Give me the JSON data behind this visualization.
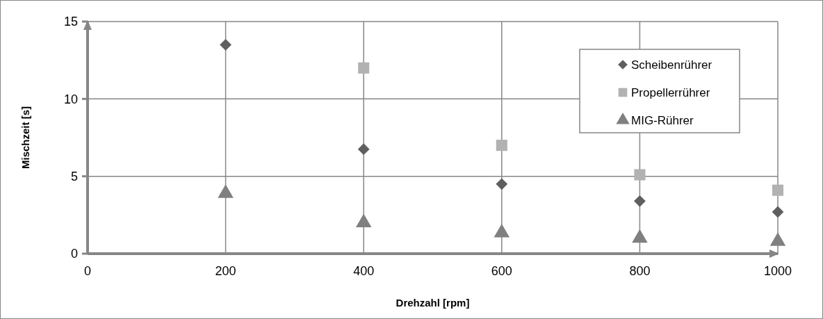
{
  "chart_data": {
    "type": "scatter",
    "xlabel": "Drehzahl [rpm]",
    "ylabel": "Mischzeit [s]",
    "x": [
      200,
      400,
      600,
      800,
      1000
    ],
    "series": [
      {
        "name": "Scheibenrührer",
        "color": "#5f5f5f",
        "marker": "diamond",
        "values": [
          13.5,
          6.75,
          4.5,
          3.4,
          2.7
        ]
      },
      {
        "name": "Propellerrührer",
        "color": "#b2b2b2",
        "marker": "square",
        "x": [
          400,
          600,
          800,
          1000
        ],
        "values": [
          12,
          7,
          5.1,
          4.1
        ]
      },
      {
        "name": "MIG-Rührer",
        "color": "#808080",
        "marker": "triangle",
        "values": [
          3.9,
          2,
          1.35,
          1,
          0.8
        ]
      }
    ],
    "xlim": [
      0,
      1000
    ],
    "xticks": [
      0,
      200,
      400,
      600,
      800,
      1000
    ],
    "ylim": [
      0,
      15
    ],
    "yticks": [
      0,
      5,
      10,
      15
    ],
    "grid": true,
    "legend": "top right"
  }
}
